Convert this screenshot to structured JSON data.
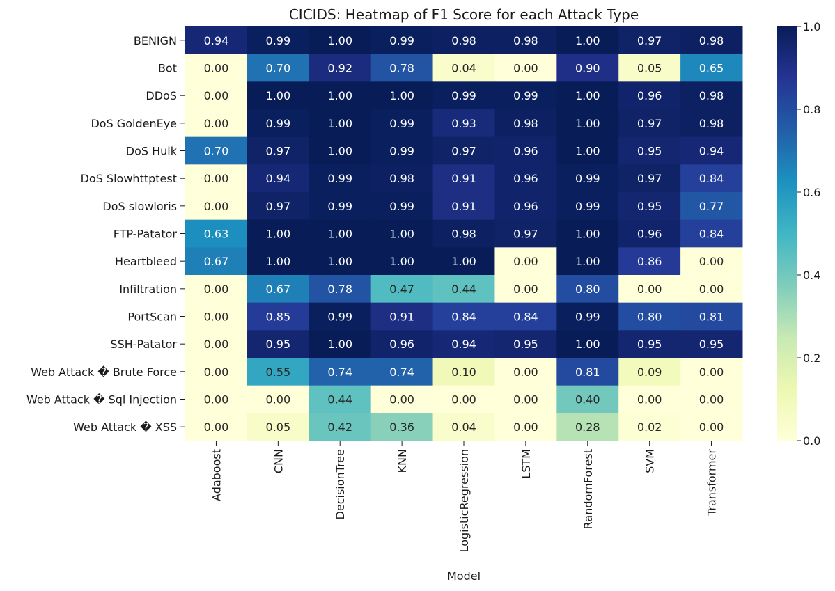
{
  "chart_data": {
    "type": "heatmap",
    "title": "CICIDS: Heatmap of F1 Score for each Attack Type",
    "xlabel": "Model",
    "ylabel": "",
    "columns": [
      "Adaboost",
      "CNN",
      "DecisionTree",
      "KNN",
      "LogisticRegression",
      "LSTM",
      "RandomForest",
      "SVM",
      "Transformer"
    ],
    "rows": [
      "BENIGN",
      "Bot",
      "DDoS",
      "DoS GoldenEye",
      "DoS Hulk",
      "DoS Slowhttptest",
      "DoS slowloris",
      "FTP-Patator",
      "Heartbleed",
      "Infiltration",
      "PortScan",
      "SSH-Patator",
      "Web Attack � Brute Force",
      "Web Attack � Sql Injection",
      "Web Attack � XSS"
    ],
    "values": [
      [
        0.94,
        0.99,
        1.0,
        0.99,
        0.98,
        0.98,
        1.0,
        0.97,
        0.98
      ],
      [
        0.0,
        0.7,
        0.92,
        0.78,
        0.04,
        0.0,
        0.9,
        0.05,
        0.65
      ],
      [
        0.0,
        1.0,
        1.0,
        1.0,
        0.99,
        0.99,
        1.0,
        0.96,
        0.98
      ],
      [
        0.0,
        0.99,
        1.0,
        0.99,
        0.93,
        0.98,
        1.0,
        0.97,
        0.98
      ],
      [
        0.7,
        0.97,
        1.0,
        0.99,
        0.97,
        0.96,
        1.0,
        0.95,
        0.94
      ],
      [
        0.0,
        0.94,
        0.99,
        0.98,
        0.91,
        0.96,
        0.99,
        0.97,
        0.84
      ],
      [
        0.0,
        0.97,
        0.99,
        0.99,
        0.91,
        0.96,
        0.99,
        0.95,
        0.77
      ],
      [
        0.63,
        1.0,
        1.0,
        1.0,
        0.98,
        0.97,
        1.0,
        0.96,
        0.84
      ],
      [
        0.67,
        1.0,
        1.0,
        1.0,
        1.0,
        0.0,
        1.0,
        0.86,
        0.0
      ],
      [
        0.0,
        0.67,
        0.78,
        0.47,
        0.44,
        0.0,
        0.8,
        0.0,
        0.0
      ],
      [
        0.0,
        0.85,
        0.99,
        0.91,
        0.84,
        0.84,
        0.99,
        0.8,
        0.81
      ],
      [
        0.0,
        0.95,
        1.0,
        0.96,
        0.94,
        0.95,
        1.0,
        0.95,
        0.95
      ],
      [
        0.0,
        0.55,
        0.74,
        0.74,
        0.1,
        0.0,
        0.81,
        0.09,
        0.0
      ],
      [
        0.0,
        0.0,
        0.44,
        0.0,
        0.0,
        0.0,
        0.4,
        0.0,
        0.0
      ],
      [
        0.0,
        0.05,
        0.42,
        0.36,
        0.04,
        0.0,
        0.28,
        0.02,
        0.0
      ]
    ],
    "value_format": "2 decimals",
    "colormap": "YlGnBu",
    "colormap_stops": [
      "#ffffd9",
      "#edf8b1",
      "#c7e9b4",
      "#7fcdbb",
      "#41b6c4",
      "#1d91c0",
      "#225ea8",
      "#253494",
      "#081d58"
    ],
    "vmin": 0.0,
    "vmax": 1.0,
    "colorbar_ticks": [
      "0.0",
      "0.2",
      "0.4",
      "0.6",
      "0.8",
      "1.0"
    ],
    "text_color_dark": "#262626",
    "text_color_light": "#ffffff"
  }
}
